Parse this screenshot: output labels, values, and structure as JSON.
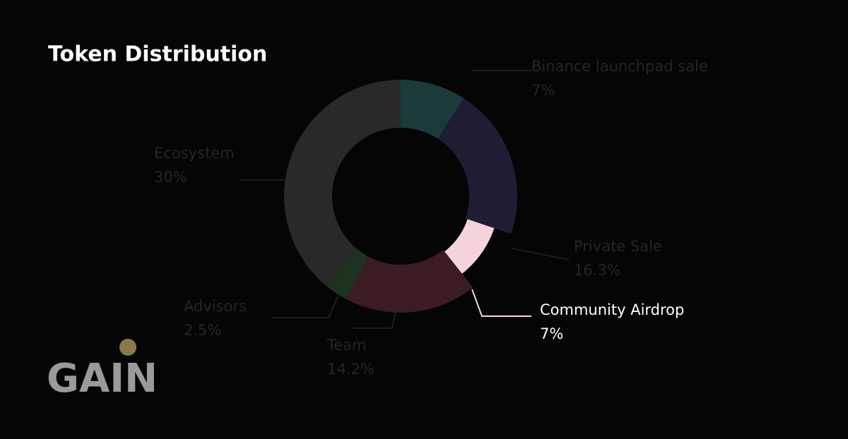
{
  "chart_data": {
    "type": "donut",
    "title": "Token Distribution",
    "categories": [
      "Binance launchpad sale",
      "Private Sale",
      "Community Airdrop",
      "Team",
      "Advisors",
      "Ecosystem"
    ],
    "values": [
      7,
      16.3,
      7,
      14.2,
      2.5,
      30
    ],
    "value_labels": [
      "7%",
      "16.3%",
      "7%",
      "14.2%",
      "2.5%",
      "30%"
    ],
    "colors": [
      "#1b3a3a",
      "#1f1d33",
      "#f6d3db",
      "#3a1c22",
      "#1d3320",
      "#2a282b"
    ],
    "highlight": 2
  },
  "logo": "GAIN"
}
